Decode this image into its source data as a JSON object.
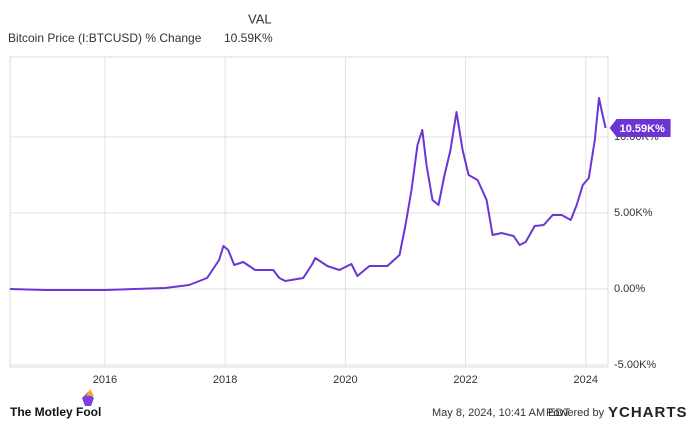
{
  "chart_data": {
    "type": "line",
    "legend_header": "VAL",
    "current_value_label": "10.59K%",
    "x": [
      2014.42,
      2015,
      2016,
      2017,
      2017.4,
      2017.7,
      2017.9,
      2017.97,
      2018.05,
      2018.15,
      2018.3,
      2018.5,
      2018.8,
      2018.9,
      2019.0,
      2019.3,
      2019.45,
      2019.5,
      2019.7,
      2019.9,
      2020.1,
      2020.2,
      2020.4,
      2020.7,
      2020.9,
      2021.0,
      2021.1,
      2021.2,
      2021.28,
      2021.35,
      2021.45,
      2021.55,
      2021.65,
      2021.75,
      2021.85,
      2021.95,
      2022.05,
      2022.2,
      2022.35,
      2022.45,
      2022.6,
      2022.8,
      2022.9,
      2023.0,
      2023.15,
      2023.3,
      2023.45,
      2023.6,
      2023.75,
      2023.85,
      2023.95,
      2024.05,
      2024.15,
      2024.22,
      2024.28,
      2024.33
    ],
    "series": [
      {
        "name": "Bitcoin Price (I:BTCUSD) % Change",
        "color": "#6b35d6",
        "values": [
          0,
          -66,
          -66,
          66,
          263,
          724,
          1908,
          2829,
          2566,
          1579,
          1776,
          1250,
          1250,
          724,
          526,
          724,
          1645,
          2039,
          1513,
          1250,
          1645,
          855,
          1513,
          1513,
          2237,
          4211,
          6513,
          9474,
          10461,
          8158,
          5855,
          5526,
          7500,
          9145,
          11645,
          9145,
          7500,
          7171,
          5855,
          3553,
          3684,
          3487,
          2895,
          3092,
          4145,
          4211,
          4868,
          4868,
          4539,
          5526,
          6842,
          7303,
          9803,
          12566,
          11447,
          10592
        ]
      }
    ],
    "xlim": [
      2014.42,
      2024.37
    ],
    "xticks": [
      2016,
      2018,
      2020,
      2022,
      2024
    ],
    "ylim": [
      -5130,
      15260
    ],
    "yticks": [
      {
        "value": -5000,
        "label": "-5.00K%"
      },
      {
        "value": 0,
        "label": "0.00%"
      },
      {
        "value": 5000,
        "label": "5.00K%"
      },
      {
        "value": 10000,
        "label": "10.00K%"
      }
    ],
    "grid": true
  },
  "footer": {
    "brand": "The Motley Fool",
    "timestamp": "May 8, 2024, 10:41 AM EDT",
    "powered_by": "Powered by",
    "provider": "YCHARTS"
  }
}
